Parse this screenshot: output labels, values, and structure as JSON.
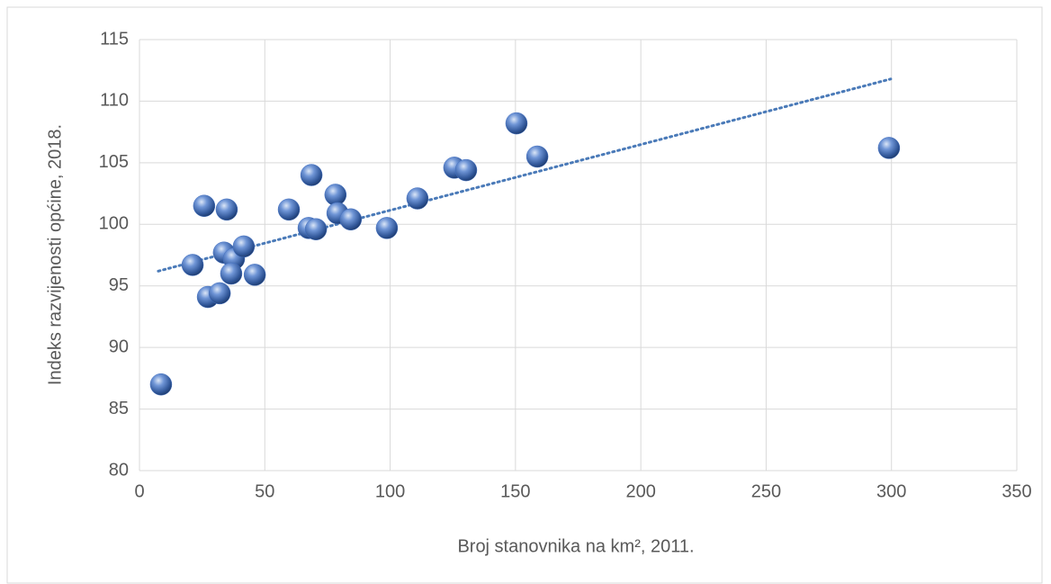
{
  "chart_data": {
    "type": "scatter",
    "xlabel": "Broj stanovnika na km², 2011.",
    "ylabel": "Indeks razvijenosti općine, 2018.",
    "x": [
      8.6,
      21.2,
      25.8,
      27.3,
      32,
      34.8,
      33.7,
      37.7,
      36.6,
      41.6,
      46,
      59.6,
      67.5,
      68.6,
      70.4,
      78.2,
      79,
      84.3,
      98.7,
      110.9,
      125.6,
      130.3,
      150.4,
      158.7,
      299
    ],
    "values": [
      87.0,
      96.7,
      101.5,
      94.1,
      94.4,
      101.2,
      97.7,
      97.2,
      96.0,
      98.2,
      95.9,
      101.2,
      99.7,
      104.0,
      99.6,
      102.4,
      100.9,
      100.4,
      99.7,
      102.1,
      104.6,
      104.4,
      108.2,
      105.5,
      106.2
    ],
    "color": "#4472c4",
    "trendline": {
      "x": [
        7.5,
        299.7
      ],
      "y": [
        96.2,
        111.8
      ],
      "color": "#4a7ab8"
    },
    "xlim": [
      0,
      350
    ],
    "xticks": [
      0,
      50,
      100,
      150,
      200,
      250,
      300,
      350
    ],
    "ylim": [
      80,
      115
    ],
    "yticks": [
      80,
      85,
      90,
      95,
      100,
      105,
      110,
      115
    ],
    "grid": true
  }
}
